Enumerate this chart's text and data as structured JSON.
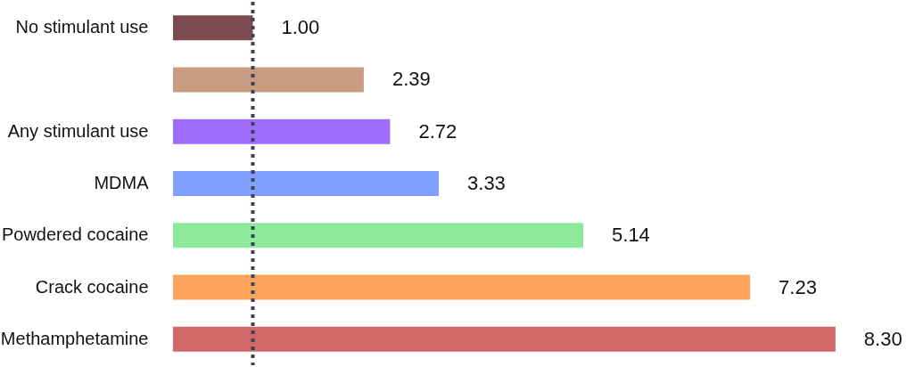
{
  "chart_data": {
    "type": "bar",
    "orientation": "horizontal",
    "categories": [
      "No stimulant use",
      null,
      "Any stimulant use",
      "MDMA",
      "Powdered cocaine",
      "Crack cocaine",
      "Methamphetamine"
    ],
    "values": [
      1.0,
      2.39,
      2.72,
      3.33,
      5.14,
      7.23,
      8.3
    ],
    "colors": [
      "#7b4b4f",
      "#c89c80",
      "#9d6efc",
      "#809ffe",
      "#8de99b",
      "#fea35c",
      "#d26868"
    ],
    "value_labels": [
      "1.00",
      "2.39",
      "2.72",
      "3.33",
      "5.14",
      "7.23",
      "8.30"
    ],
    "grid": false,
    "ref_lines": [
      {
        "axis": "x",
        "value": 1,
        "line_style": "dotted",
        "color": "#3d4257"
      }
    ]
  }
}
